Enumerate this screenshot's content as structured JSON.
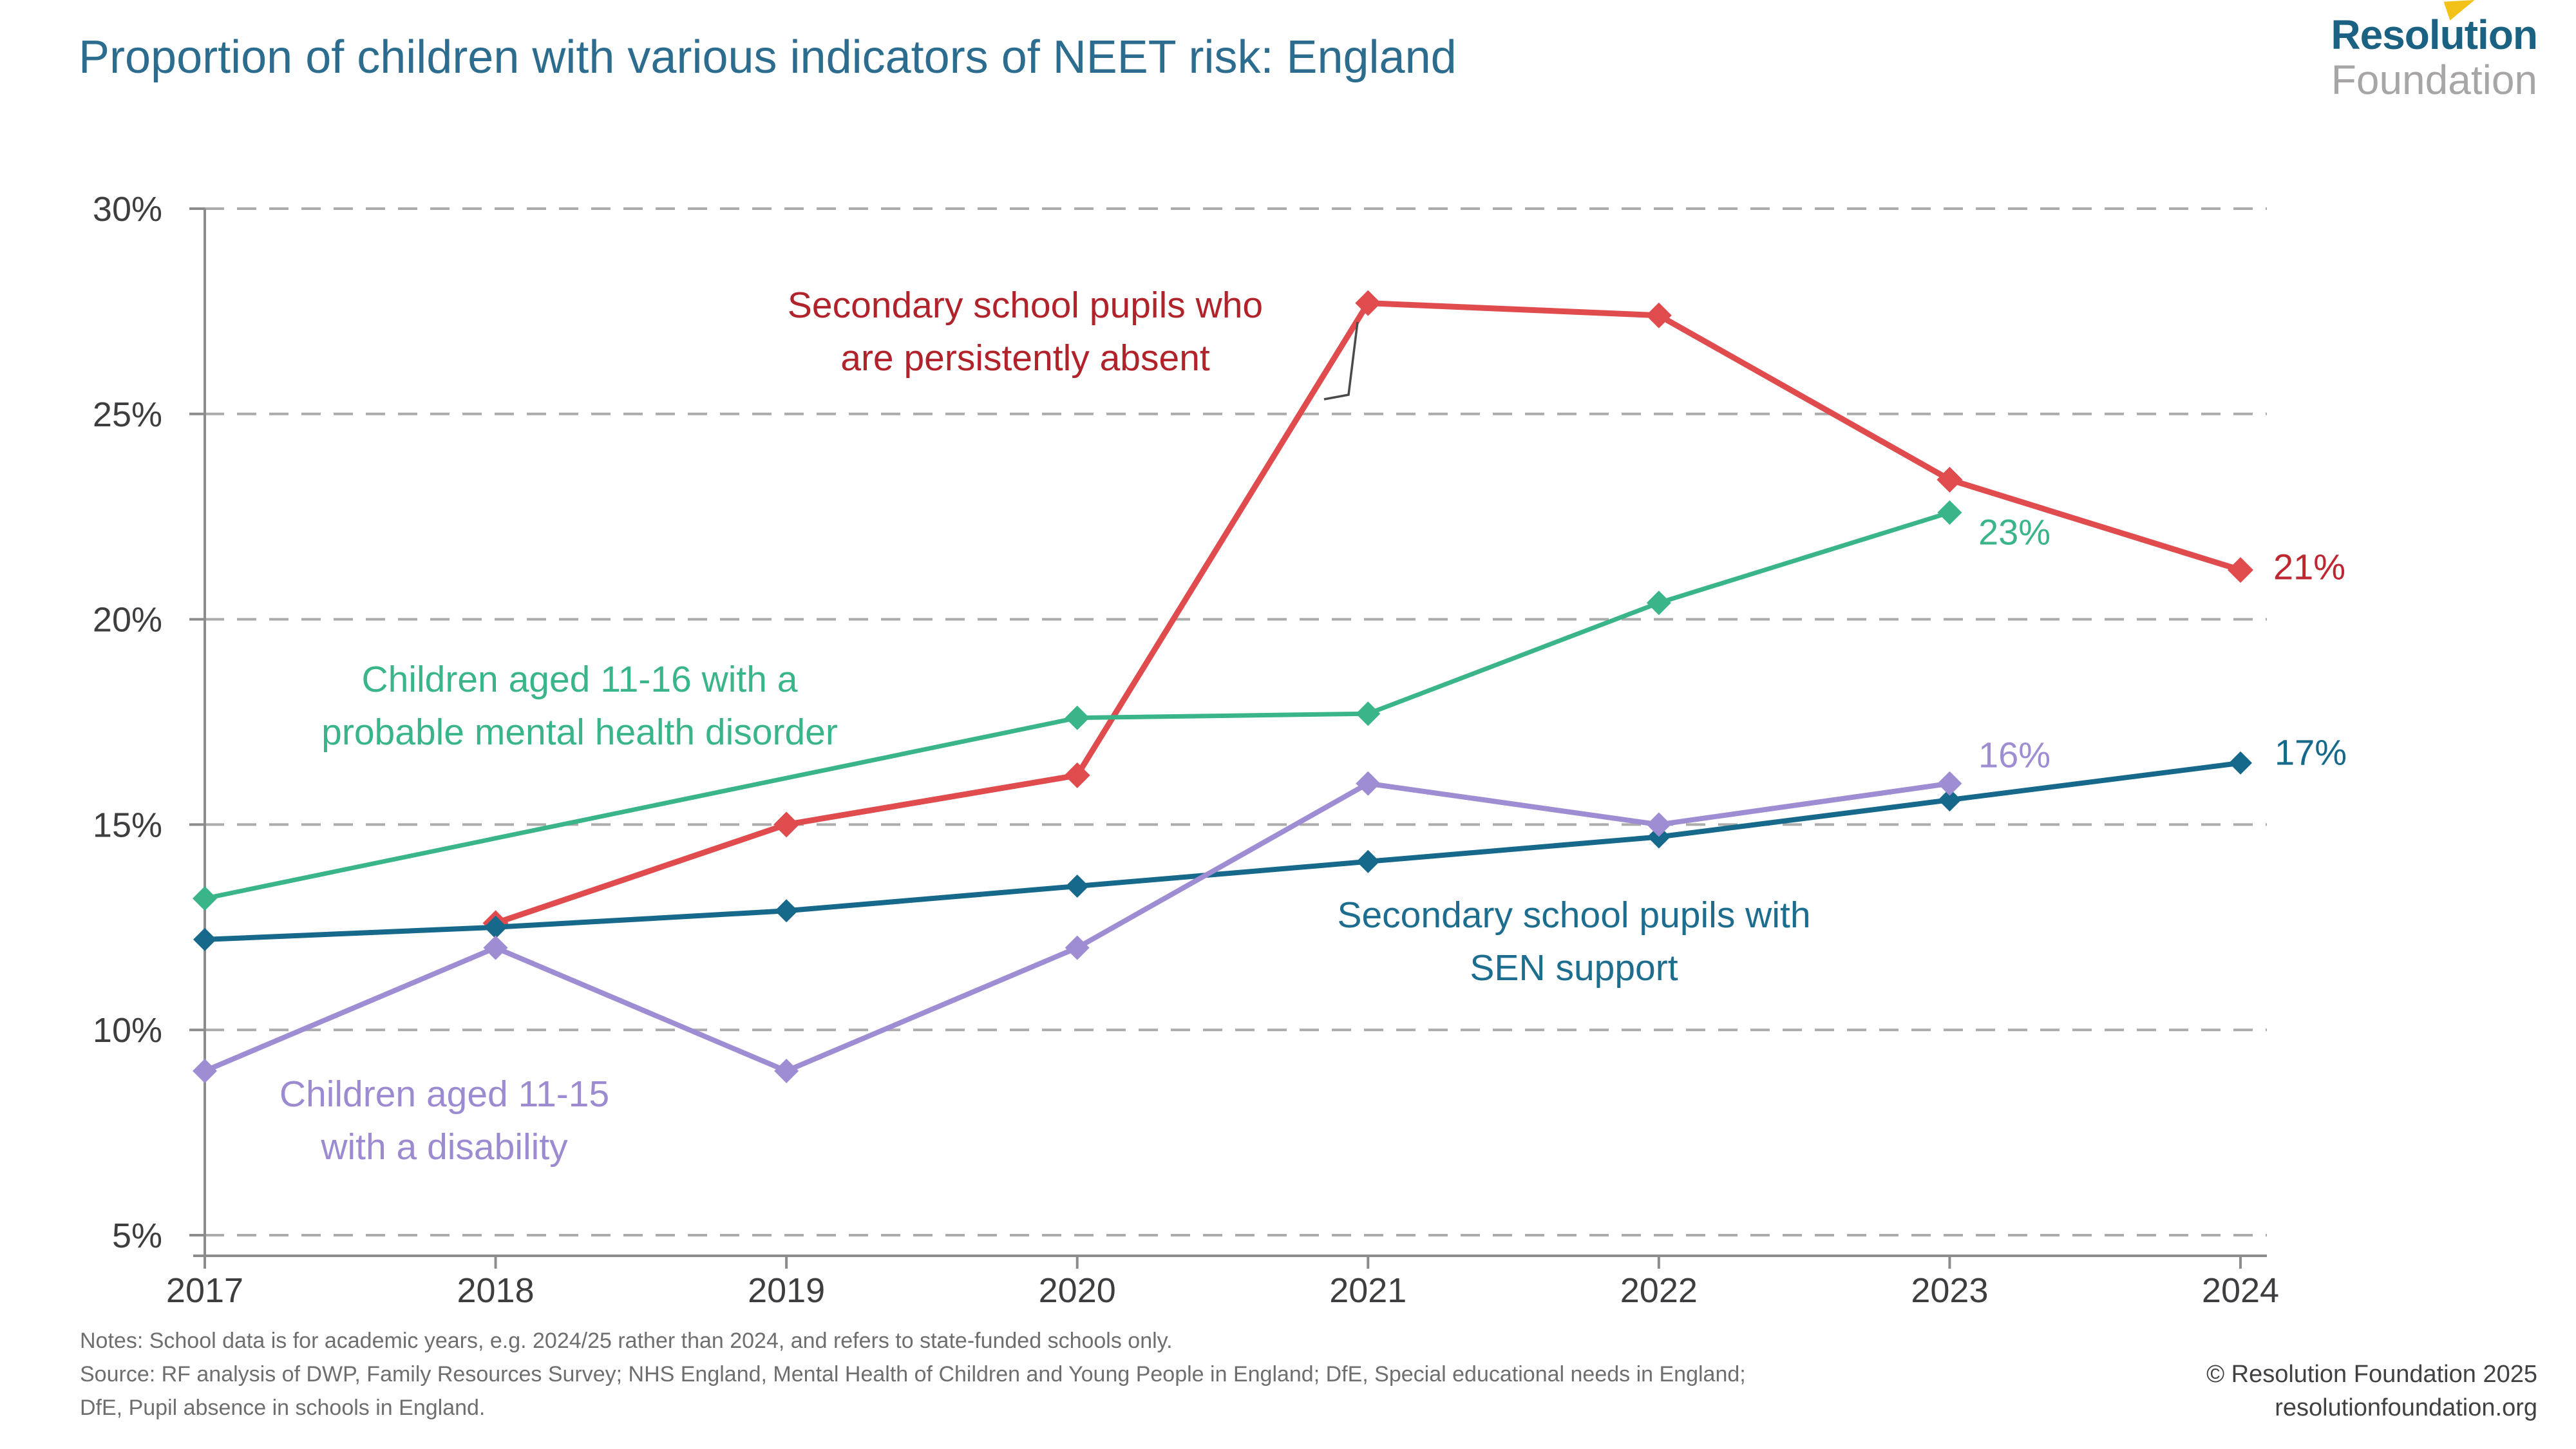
{
  "header": {
    "logo": {
      "line1": "Resolution",
      "line2": "Foundation",
      "flag_color": "#F2C218"
    }
  },
  "chart_data": {
    "type": "line",
    "title": "Proportion of children with various indicators of NEET risk: England",
    "title_color": "#2C6C8E",
    "x": [
      "2017",
      "2018",
      "2019",
      "2020",
      "2021",
      "2022",
      "2023",
      "2024"
    ],
    "y_axis": {
      "min": 5,
      "max": 30,
      "tick_step": 5,
      "tick_suffix": "%",
      "grid": "dashed-horizontal"
    },
    "axis_colors": {
      "gridline": "#ABABAB",
      "axis_line": "#8C8C8C",
      "tick_label": "#3E3E40"
    },
    "legend_position": "inline-annotations",
    "series": [
      {
        "id": "absent",
        "name": "Secondary school pupils who are persistently absent",
        "color": "#E04B4E",
        "line_width": 9,
        "marker": "diamond",
        "marker_size": 40,
        "values": [
          null,
          12.6,
          15.0,
          16.2,
          27.7,
          27.4,
          23.4,
          21.2
        ],
        "annotation": {
          "lines": [
            "Secondary school pupils who",
            "are persistently absent"
          ],
          "x": 1592,
          "y": 515,
          "text_color": "#B0232A"
        },
        "end_label": {
          "text": "21%",
          "x": 3586,
          "y": 880,
          "color": "#BE2630"
        }
      },
      {
        "id": "mental-health",
        "name": "Children aged 11-16 with a probable mental health disorder",
        "color": "#3AB589",
        "line_width": 7,
        "marker": "diamond",
        "marker_size": 38,
        "values": [
          13.2,
          null,
          null,
          17.6,
          17.7,
          20.4,
          22.6,
          null
        ],
        "annotation": {
          "lines": [
            "Children aged 11-16 with a",
            "probable mental health disorder"
          ],
          "x": 900,
          "y": 1096,
          "text_color": "#3AB589"
        },
        "end_label": {
          "text": "23%",
          "x": 3128,
          "y": 826,
          "color": "#3AB589"
        }
      },
      {
        "id": "sen-support",
        "name": "Secondary school pupils with SEN support",
        "color": "#17698C",
        "line_width": 8,
        "marker": "diamond",
        "marker_size": 36,
        "values": [
          12.2,
          12.5,
          12.9,
          13.5,
          14.1,
          14.7,
          15.6,
          16.5
        ],
        "annotation": {
          "lines": [
            "Secondary school pupils with",
            "SEN support"
          ],
          "x": 2444,
          "y": 1462,
          "text_color": "#1D6D8F"
        },
        "end_label": {
          "text": "17%",
          "x": 3588,
          "y": 1168,
          "color": "#17698C"
        }
      },
      {
        "id": "disability",
        "name": "Children aged 11-15 with a disability",
        "color": "#9E8DD3",
        "line_width": 8,
        "marker": "diamond",
        "marker_size": 38,
        "values": [
          9.0,
          12.0,
          9.0,
          12.0,
          16.0,
          15.0,
          16.0,
          null
        ],
        "annotation": {
          "lines": [
            "Children aged 11-15",
            "with a disability"
          ],
          "x": 690,
          "y": 1740,
          "text_color": "#9C8BD1"
        },
        "end_label": {
          "text": "16%",
          "x": 3128,
          "y": 1172,
          "color": "#9E8DD3"
        }
      }
    ],
    "leader_line": {
      "points": [
        [
          2056,
          620
        ],
        [
          2094,
          613
        ],
        [
          2108,
          500
        ]
      ],
      "color": "#4A4A4A"
    }
  },
  "notes": {
    "line1": "Notes: School data is for academic years, e.g. 2024/25 rather than 2024, and refers to state-funded schools only.",
    "line2": "Source: RF analysis of DWP, Family Resources Survey; NHS England, Mental Health of Children and Young People in England; DfE, Special educational needs in England;",
    "line3": "DfE, Pupil absence in schools in England."
  },
  "footer": {
    "copyright": "© Resolution Foundation 2025",
    "website": "resolutionfoundation.org"
  }
}
